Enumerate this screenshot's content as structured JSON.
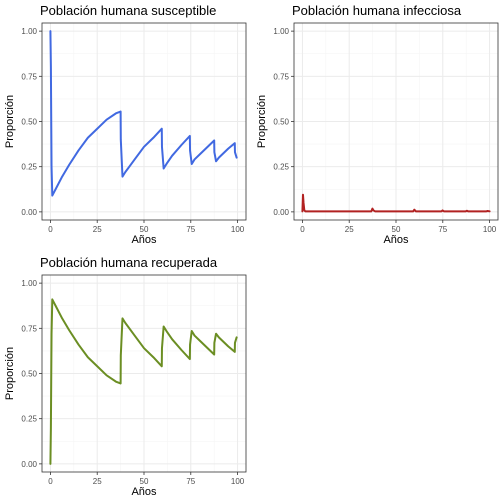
{
  "chart_data": [
    {
      "type": "line",
      "title": "Población humana susceptible",
      "xlabel": "Años",
      "ylabel": "Proporción",
      "xlim": [
        0,
        100
      ],
      "ylim": [
        0,
        1
      ],
      "x_ticks": [
        "0",
        "25",
        "50",
        "75",
        "100"
      ],
      "y_ticks": [
        "0.00",
        "0.25",
        "0.50",
        "0.75",
        "1.00"
      ],
      "grid": true,
      "color": "#4169E1",
      "series": [
        {
          "x": [
            0,
            0.25,
            0.6,
            1,
            3,
            6,
            10,
            15,
            20,
            25,
            30,
            35,
            37.5,
            37.6,
            38.5,
            40,
            45,
            50,
            55,
            59.5,
            59.6,
            60.5,
            62,
            65,
            70,
            74.5,
            74.6,
            75.5,
            77,
            80,
            85,
            87.5,
            87.6,
            88.5,
            90,
            95,
            98.5,
            98.6,
            99.5
          ],
          "y": [
            1.0,
            0.8,
            0.25,
            0.09,
            0.13,
            0.19,
            0.26,
            0.34,
            0.41,
            0.46,
            0.51,
            0.545,
            0.555,
            0.4,
            0.195,
            0.22,
            0.29,
            0.36,
            0.41,
            0.46,
            0.36,
            0.24,
            0.265,
            0.31,
            0.37,
            0.42,
            0.34,
            0.265,
            0.29,
            0.32,
            0.37,
            0.395,
            0.33,
            0.28,
            0.3,
            0.35,
            0.38,
            0.33,
            0.3
          ]
        }
      ]
    },
    {
      "type": "line",
      "title": "Población humana infecciosa",
      "xlabel": "Años",
      "ylabel": "Proporción",
      "xlim": [
        0,
        100
      ],
      "ylim": [
        0,
        1
      ],
      "x_ticks": [
        "0",
        "25",
        "50",
        "75",
        "100"
      ],
      "y_ticks": [
        "0.00",
        "0.25",
        "0.50",
        "0.75",
        "1.00"
      ],
      "grid": true,
      "color": "#B22222",
      "series": [
        {
          "x": [
            0,
            0.3,
            0.6,
            1,
            1.5,
            36.8,
            37.4,
            38,
            38.8,
            59.2,
            59.8,
            60.6,
            74.3,
            74.9,
            75.6,
            87.3,
            87.9,
            88.5,
            98.3,
            98.9,
            100
          ],
          "y": [
            0.003,
            0.095,
            0.05,
            0.01,
            0.003,
            0.003,
            0.018,
            0.008,
            0.003,
            0.003,
            0.012,
            0.003,
            0.003,
            0.008,
            0.003,
            0.003,
            0.006,
            0.003,
            0.003,
            0.005,
            0.003
          ]
        }
      ]
    },
    {
      "type": "line",
      "title": "Población humana recuperada",
      "xlabel": "Años",
      "ylabel": "Proporción",
      "xlim": [
        0,
        100
      ],
      "ylim": [
        0,
        1
      ],
      "x_ticks": [
        "0",
        "25",
        "50",
        "75",
        "100"
      ],
      "y_ticks": [
        "0.00",
        "0.25",
        "0.50",
        "0.75",
        "1.00"
      ],
      "grid": true,
      "color": "#6B8E23",
      "series": [
        {
          "x": [
            0,
            0.25,
            0.6,
            1,
            3,
            6,
            10,
            15,
            20,
            25,
            30,
            35,
            37.5,
            37.6,
            38.5,
            40,
            45,
            50,
            55,
            59.5,
            59.6,
            60.5,
            62,
            65,
            70,
            74.5,
            74.6,
            75.5,
            77,
            80,
            85,
            87.5,
            87.6,
            88.5,
            90,
            95,
            98.5,
            98.6,
            99.5
          ],
          "y": [
            0.0,
            0.2,
            0.72,
            0.91,
            0.87,
            0.81,
            0.74,
            0.66,
            0.59,
            0.54,
            0.49,
            0.455,
            0.445,
            0.6,
            0.805,
            0.78,
            0.71,
            0.64,
            0.59,
            0.54,
            0.64,
            0.76,
            0.735,
            0.69,
            0.63,
            0.58,
            0.66,
            0.735,
            0.71,
            0.68,
            0.63,
            0.605,
            0.67,
            0.72,
            0.7,
            0.65,
            0.62,
            0.67,
            0.7
          ]
        }
      ]
    }
  ]
}
